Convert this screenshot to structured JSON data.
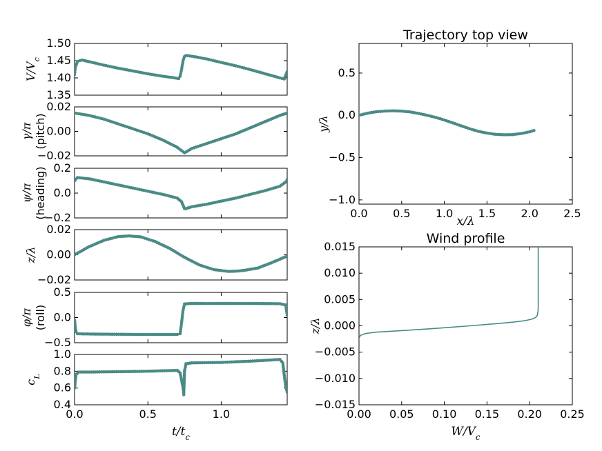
{
  "series_color": "#4a8a86",
  "chart_data": [
    {
      "id": "speed",
      "type": "line",
      "marker": "dots",
      "xlim": [
        0,
        1.45
      ],
      "ylim": [
        1.35,
        1.5
      ],
      "xticks": [
        0.0,
        0.5,
        1.0
      ],
      "yticks": [
        1.35,
        1.4,
        1.45,
        1.5
      ],
      "ytick_labels": [
        "1.35",
        "1.40",
        "1.45",
        "1.50"
      ],
      "xtick_labels": [],
      "ylabel": "V/V_c",
      "ylabel2": "",
      "x": [
        0,
        0.005,
        0.02,
        0.05,
        0.1,
        0.2,
        0.3,
        0.4,
        0.5,
        0.6,
        0.7,
        0.71,
        0.72,
        0.73,
        0.74,
        0.75,
        0.76,
        0.8,
        0.9,
        1.0,
        1.1,
        1.2,
        1.3,
        1.4,
        1.43,
        1.44,
        1.45
      ],
      "y": [
        1.41,
        1.43,
        1.448,
        1.452,
        1.447,
        1.437,
        1.428,
        1.42,
        1.412,
        1.405,
        1.399,
        1.398,
        1.405,
        1.425,
        1.45,
        1.462,
        1.465,
        1.463,
        1.455,
        1.445,
        1.435,
        1.424,
        1.412,
        1.4,
        1.397,
        1.408,
        1.418
      ]
    },
    {
      "id": "pitch",
      "type": "line",
      "marker": "dots",
      "xlim": [
        0,
        1.45
      ],
      "ylim": [
        -0.02,
        0.02
      ],
      "xticks": [
        0.0,
        0.5,
        1.0
      ],
      "yticks": [
        -0.02,
        0.0,
        0.02
      ],
      "ytick_labels": [
        "−0.02",
        "0.00",
        "0.02"
      ],
      "xtick_labels": [],
      "ylabel": "γ/π",
      "ylabel2": "(pitch)",
      "x": [
        0,
        0.1,
        0.2,
        0.3,
        0.4,
        0.5,
        0.6,
        0.7,
        0.75,
        0.8,
        0.9,
        1.0,
        1.1,
        1.2,
        1.3,
        1.4,
        1.45
      ],
      "y": [
        0.015,
        0.013,
        0.01,
        0.006,
        0.002,
        -0.002,
        -0.007,
        -0.013,
        -0.0175,
        -0.014,
        -0.01,
        -0.006,
        -0.002,
        0.003,
        0.008,
        0.013,
        0.015
      ]
    },
    {
      "id": "heading",
      "type": "line",
      "marker": "dots",
      "xlim": [
        0,
        1.45
      ],
      "ylim": [
        -0.2,
        0.2
      ],
      "xticks": [
        0.0,
        0.5,
        1.0
      ],
      "yticks": [
        -0.2,
        0.0,
        0.2
      ],
      "ytick_labels": [
        "−0.2",
        "0.0",
        "0.2"
      ],
      "xtick_labels": [],
      "ylabel": "ψ/π",
      "ylabel2": "(heading)",
      "x": [
        0,
        0.02,
        0.1,
        0.2,
        0.3,
        0.4,
        0.5,
        0.6,
        0.7,
        0.73,
        0.75,
        0.76,
        0.8,
        0.9,
        1.0,
        1.1,
        1.2,
        1.3,
        1.4,
        1.44,
        1.45
      ],
      "y": [
        0.1,
        0.125,
        0.115,
        0.09,
        0.065,
        0.04,
        0.015,
        -0.01,
        -0.04,
        -0.07,
        -0.125,
        -0.125,
        -0.11,
        -0.09,
        -0.065,
        -0.04,
        -0.01,
        0.02,
        0.055,
        0.09,
        0.11
      ]
    },
    {
      "id": "altitude",
      "type": "line",
      "marker": "dots",
      "xlim": [
        0,
        1.45
      ],
      "ylim": [
        -0.02,
        0.02
      ],
      "xticks": [
        0.0,
        0.5,
        1.0
      ],
      "yticks": [
        -0.02,
        0.0,
        0.02
      ],
      "ytick_labels": [
        "−0.02",
        "0.00",
        "0.02"
      ],
      "xtick_labels": [],
      "ylabel": "z/λ",
      "ylabel2": "",
      "x": [
        0,
        0.1,
        0.2,
        0.3,
        0.37,
        0.45,
        0.55,
        0.65,
        0.75,
        0.85,
        0.95,
        1.05,
        1.1,
        1.15,
        1.25,
        1.35,
        1.45
      ],
      "y": [
        0.0,
        0.0065,
        0.0115,
        0.0145,
        0.015,
        0.0143,
        0.0105,
        0.005,
        -0.002,
        -0.008,
        -0.0118,
        -0.0132,
        -0.013,
        -0.0125,
        -0.0105,
        -0.006,
        -0.001
      ]
    },
    {
      "id": "roll",
      "type": "line",
      "marker": "dots",
      "xlim": [
        0,
        1.45
      ],
      "ylim": [
        -0.5,
        0.5
      ],
      "xticks": [
        0.0,
        0.5,
        1.0
      ],
      "yticks": [
        -0.5,
        0.0,
        0.5
      ],
      "ytick_labels": [
        "−0.5",
        "0.0",
        "0.5"
      ],
      "xtick_labels": [],
      "ylabel": "φ/π",
      "ylabel2": "(roll)",
      "x": [
        0,
        0.005,
        0.01,
        0.02,
        0.05,
        0.2,
        0.4,
        0.6,
        0.7,
        0.72,
        0.73,
        0.74,
        0.75,
        0.8,
        1.0,
        1.2,
        1.4,
        1.44,
        1.45
      ],
      "y": [
        -0.05,
        -0.2,
        -0.28,
        -0.32,
        -0.325,
        -0.33,
        -0.335,
        -0.335,
        -0.335,
        -0.32,
        -0.1,
        0.15,
        0.27,
        0.28,
        0.28,
        0.28,
        0.275,
        0.25,
        0.05
      ]
    },
    {
      "id": "lift",
      "type": "line",
      "marker": "dots",
      "xlim": [
        0,
        1.45
      ],
      "ylim": [
        0.4,
        1.0
      ],
      "xticks": [
        0.0,
        0.5,
        1.0
      ],
      "yticks": [
        0.4,
        0.6,
        0.8,
        1.0
      ],
      "ytick_labels": [
        "0.4",
        "0.6",
        "0.8",
        "1.0"
      ],
      "xtick_labels": [
        "0.0",
        "0.5",
        "1.0"
      ],
      "ylabel": "c_L",
      "ylabel2": "",
      "xlabel": "t/t_c",
      "x": [
        0,
        0.01,
        0.03,
        0.1,
        0.3,
        0.5,
        0.7,
        0.72,
        0.74,
        0.745,
        0.75,
        0.76,
        0.8,
        1.0,
        1.2,
        1.4,
        1.42,
        1.43,
        1.44,
        1.45
      ],
      "y": [
        0.6,
        0.76,
        0.79,
        0.79,
        0.795,
        0.8,
        0.81,
        0.78,
        0.6,
        0.52,
        0.8,
        0.89,
        0.9,
        0.905,
        0.92,
        0.94,
        0.9,
        0.75,
        0.62,
        0.55
      ]
    },
    {
      "id": "topview",
      "type": "line",
      "marker": "dots",
      "title": "Trajectory top view",
      "xlim": [
        0,
        2.5
      ],
      "ylim": [
        -1.05,
        0.85
      ],
      "xticks": [
        0.0,
        0.5,
        1.0,
        1.5,
        2.0,
        2.5
      ],
      "yticks": [
        -1.0,
        -0.5,
        0.0,
        0.5
      ],
      "xtick_labels": [
        "0.0",
        "0.5",
        "1.0",
        "1.5",
        "2.0",
        "2.5"
      ],
      "ytick_labels": [
        "−1.0",
        "−0.5",
        "0.0",
        "0.5"
      ],
      "xlabel": "x/λ",
      "ylabel": "y/λ",
      "x": [
        0,
        0.1,
        0.2,
        0.3,
        0.4,
        0.5,
        0.6,
        0.7,
        0.8,
        0.9,
        1.0,
        1.1,
        1.2,
        1.3,
        1.4,
        1.5,
        1.6,
        1.7,
        1.8,
        1.9,
        2.0,
        2.05
      ],
      "y": [
        0.0,
        0.025,
        0.042,
        0.05,
        0.053,
        0.05,
        0.04,
        0.022,
        0.0,
        -0.025,
        -0.055,
        -0.09,
        -0.125,
        -0.16,
        -0.19,
        -0.21,
        -0.225,
        -0.23,
        -0.228,
        -0.215,
        -0.195,
        -0.18
      ]
    },
    {
      "id": "wind",
      "type": "line",
      "marker": "none",
      "title": "Wind profile",
      "xlim": [
        0,
        0.25
      ],
      "ylim": [
        -0.015,
        0.015
      ],
      "xticks": [
        0.0,
        0.05,
        0.1,
        0.15,
        0.2,
        0.25
      ],
      "yticks": [
        -0.015,
        -0.01,
        -0.005,
        0.0,
        0.005,
        0.01,
        0.015
      ],
      "xtick_labels": [
        "0.00",
        "0.05",
        "0.10",
        "0.15",
        "0.20",
        "0.25"
      ],
      "ytick_labels": [
        "−0.015",
        "−0.010",
        "−0.005",
        "0.000",
        "0.005",
        "0.010",
        "0.015"
      ],
      "xlabel": "W/V_c",
      "ylabel": "z/λ",
      "x": [
        0.0,
        0.0005,
        0.001,
        0.002,
        0.005,
        0.01,
        0.02,
        0.05,
        0.08,
        0.105,
        0.13,
        0.16,
        0.18,
        0.195,
        0.203,
        0.207,
        0.209,
        0.21,
        0.21,
        0.21
      ],
      "y": [
        -0.0025,
        -0.0022,
        -0.002,
        -0.0018,
        -0.0016,
        -0.0014,
        -0.0012,
        -0.0009,
        -0.0006,
        -0.0003,
        0.0,
        0.0004,
        0.0007,
        0.001,
        0.0013,
        0.0016,
        0.002,
        0.003,
        0.008,
        0.015
      ]
    }
  ]
}
